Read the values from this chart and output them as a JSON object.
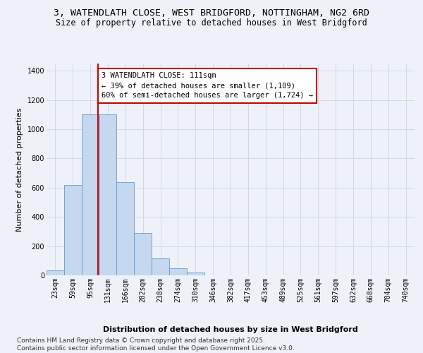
{
  "title_line1": "3, WATENDLATH CLOSE, WEST BRIDGFORD, NOTTINGHAM, NG2 6RD",
  "title_line2": "Size of property relative to detached houses in West Bridgford",
  "xlabel": "Distribution of detached houses by size in West Bridgford",
  "ylabel": "Number of detached properties",
  "bin_labels": [
    "23sqm",
    "59sqm",
    "95sqm",
    "131sqm",
    "166sqm",
    "202sqm",
    "238sqm",
    "274sqm",
    "310sqm",
    "346sqm",
    "382sqm",
    "417sqm",
    "453sqm",
    "489sqm",
    "525sqm",
    "561sqm",
    "597sqm",
    "632sqm",
    "668sqm",
    "704sqm",
    "740sqm"
  ],
  "bar_heights": [
    35,
    620,
    1100,
    1100,
    640,
    290,
    115,
    50,
    20,
    0,
    0,
    0,
    0,
    0,
    0,
    0,
    0,
    0,
    0,
    0,
    0
  ],
  "bar_color": "#c5d8f0",
  "bar_edge_color": "#6699cc",
  "vline_x": 2.44,
  "annotation_text": "3 WATENDLATH CLOSE: 111sqm\n← 39% of detached houses are smaller (1,109)\n60% of semi-detached houses are larger (1,724) →",
  "annotation_box_facecolor": "#ffffff",
  "annotation_box_edgecolor": "#cc0000",
  "vline_color": "#cc0000",
  "ylim": [
    0,
    1450
  ],
  "yticks": [
    0,
    200,
    400,
    600,
    800,
    1000,
    1200,
    1400
  ],
  "grid_color": "#d0d8e8",
  "background_color": "#eef2f8",
  "plot_bg_color": "#eef2f8",
  "footer_line1": "Contains HM Land Registry data © Crown copyright and database right 2025.",
  "footer_line2": "Contains public sector information licensed under the Open Government Licence v3.0.",
  "title_fontsize": 9.5,
  "subtitle_fontsize": 8.5,
  "axis_label_fontsize": 8,
  "tick_fontsize": 7,
  "annot_fontsize": 7.5,
  "footer_fontsize": 6.5
}
